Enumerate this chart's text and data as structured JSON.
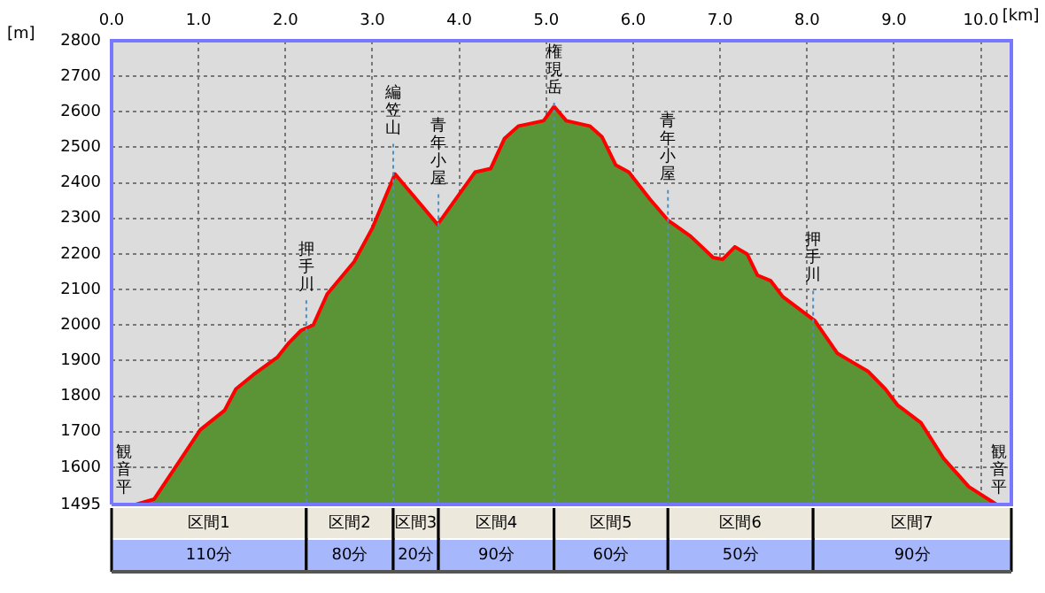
{
  "chart_data": {
    "type": "area",
    "xlabel": "[km]",
    "ylabel": "[m]",
    "x": [
      0,
      0.28,
      0.49,
      1.02,
      1.3,
      1.43,
      1.63,
      1.91,
      2.04,
      2.18,
      2.32,
      2.48,
      2.79,
      3.0,
      3.26,
      3.75,
      4.18,
      4.36,
      4.52,
      4.68,
      4.78,
      4.97,
      5.09,
      5.23,
      5.5,
      5.64,
      5.8,
      5.95,
      6.19,
      6.4,
      6.66,
      6.92,
      7.03,
      7.17,
      7.31,
      7.43,
      7.58,
      7.72,
      8.09,
      8.35,
      8.49,
      8.7,
      8.9,
      9.04,
      9.31,
      9.57,
      9.86,
      10.18,
      10.28
    ],
    "series": [
      {
        "color": "#5b9436",
        "values": [
          1495,
          1495,
          1510,
          1705,
          1760,
          1820,
          1860,
          1910,
          1950,
          1985,
          2000,
          2087,
          2178,
          2273,
          2425,
          2283,
          2430,
          2440,
          2525,
          2560,
          2565,
          2575,
          2615,
          2575,
          2560,
          2530,
          2450,
          2430,
          2355,
          2295,
          2250,
          2190,
          2185,
          2220,
          2200,
          2140,
          2125,
          2080,
          2012,
          1920,
          1900,
          1870,
          1820,
          1775,
          1725,
          1625,
          1545,
          1495,
          1495
        ]
      }
    ],
    "xlim": [
      0,
      10.35
    ],
    "xticks": [
      {
        "value": 0,
        "label": "0.0"
      },
      {
        "value": 1,
        "label": "1.0"
      },
      {
        "value": 2,
        "label": "2.0"
      },
      {
        "value": 3,
        "label": "3.0"
      },
      {
        "value": 4,
        "label": "4.0"
      },
      {
        "value": 5,
        "label": "5.0"
      },
      {
        "value": 6,
        "label": "6.0"
      },
      {
        "value": 7,
        "label": "7.0"
      },
      {
        "value": 8,
        "label": "8.0"
      },
      {
        "value": 9,
        "label": "9.0"
      },
      {
        "value": 10,
        "label": "10.0"
      }
    ],
    "ylim": [
      1495,
      2800
    ],
    "yticks": [
      1495,
      1600,
      1700,
      1800,
      1900,
      2000,
      2100,
      2200,
      2300,
      2400,
      2500,
      2600,
      2700,
      2800
    ],
    "grid": true,
    "legend": false,
    "ref_lines": [
      {
        "axis": "x",
        "value": 2.24,
        "label": "押手川"
      },
      {
        "axis": "x",
        "value": 3.24,
        "label": "編笠山"
      },
      {
        "axis": "x",
        "value": 3.76,
        "label": "青年小屋"
      },
      {
        "axis": "x",
        "value": 5.09,
        "label": "権現岳"
      },
      {
        "axis": "x",
        "value": 6.4,
        "label": "青年小屋"
      },
      {
        "axis": "x",
        "value": 8.07,
        "label": "押手川"
      }
    ],
    "annotations": [
      "区間1",
      "110分",
      "区間2",
      "80分",
      "区間3",
      "20分",
      "区間4",
      "90分",
      "区間5",
      "60分",
      "区間6",
      "50分",
      "区間7",
      "90分",
      {
        "text": "観音平",
        "x": 0,
        "y": 1495
      },
      {
        "text": "観音平",
        "x": 10.28,
        "y": 1495
      }
    ]
  }
}
